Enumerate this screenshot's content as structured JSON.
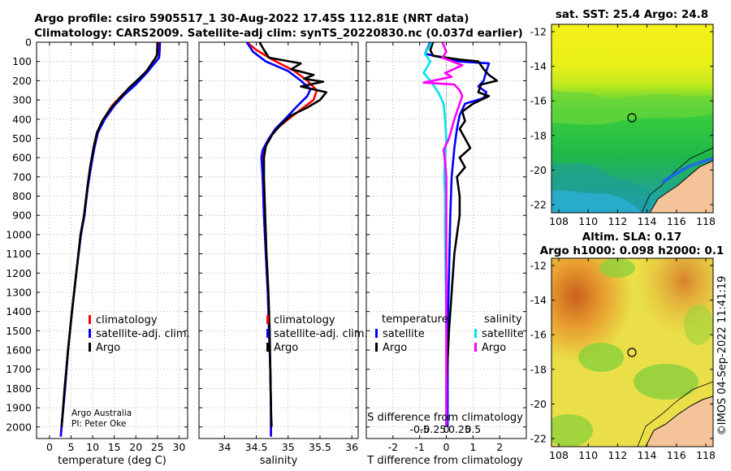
{
  "header": {
    "line1": "Argo profile: csiro 5905517_1 30-Aug-2022 17.45S 112.81E (NRT data)",
    "line2": "Climatology: CARS2009. Satellite-adj clim: synTS_20220830.nc (0.037d earlier)"
  },
  "credit": {
    "line1": "Argo Australia",
    "line2": "PI: Peter Oke"
  },
  "timestamp": "©IMOS 04-Sep-2022 11:41:19",
  "colors": {
    "climatology": "#ff0000",
    "satellite": "#0000ff",
    "argo": "#000000",
    "sal_satellite": "#00e5ee",
    "sal_argo": "#ff00ff"
  },
  "legends": {
    "temperature_panel": [
      "climatology",
      "satellite-adj. clim.",
      "Argo"
    ],
    "salinity_panel": [
      "climatology",
      "satellite-adj. clim.",
      "Argo"
    ],
    "diff_temp_title": "temperature",
    "diff_sal_title": "salinity",
    "diff_temp_items": [
      "satellite",
      "Argo"
    ],
    "diff_sal_items": [
      "satellite",
      "Argo"
    ]
  },
  "maps": {
    "sst_title": "sat. SST: 25.4 Argo: 24.8",
    "sla_title_1": "Altim. SLA: 0.17",
    "sla_title_2": "Argo h1000: 0.098 h2000: 0.1",
    "lon_ticks": [
      "108",
      "110",
      "112",
      "114",
      "116",
      "118"
    ],
    "lat_ticks": [
      "-12",
      "-14",
      "-16",
      "-18",
      "-20",
      "-22"
    ]
  },
  "chart_data": [
    {
      "type": "line",
      "id": "temperature",
      "xlabel": "temperature (deg C)",
      "ylabel": "",
      "xlim": [
        -3,
        32
      ],
      "ylim": [
        2060,
        0
      ],
      "xticks": [
        0,
        5,
        10,
        15,
        20,
        25,
        30
      ],
      "xtick_labels": [
        "0",
        "5",
        "10",
        "15",
        "20",
        "25",
        "30"
      ],
      "yticks": [
        0,
        100,
        200,
        300,
        400,
        500,
        600,
        700,
        800,
        900,
        1000,
        1100,
        1200,
        1300,
        1400,
        1500,
        1600,
        1700,
        1800,
        1900,
        2000
      ],
      "ytick_labels": [
        "0",
        "100",
        "200",
        "300",
        "400",
        "500",
        "600",
        "700",
        "800",
        "900",
        "1000",
        "1100",
        "1200",
        "1300",
        "1400",
        "1500",
        "1600",
        "1700",
        "1800",
        "1900",
        "2000"
      ],
      "series": [
        {
          "name": "climatology",
          "color": "#ff0000",
          "points": [
            [
              25.2,
              0
            ],
            [
              25.1,
              50
            ],
            [
              24.6,
              80
            ],
            [
              22.5,
              150
            ],
            [
              20,
              210
            ],
            [
              17,
              270
            ],
            [
              14.5,
              330
            ],
            [
              12.5,
              400
            ],
            [
              11,
              470
            ],
            [
              10.2,
              550
            ],
            [
              9.5,
              650
            ],
            [
              8.8,
              750
            ],
            [
              8,
              900
            ],
            [
              7.2,
              1000
            ],
            [
              6.2,
              1200
            ],
            [
              5.2,
              1400
            ],
            [
              4.3,
              1600
            ],
            [
              3.6,
              1800
            ],
            [
              2.8,
              2000
            ],
            [
              2.6,
              2050
            ]
          ]
        },
        {
          "name": "satellite-adj. clim.",
          "color": "#0000ff",
          "points": [
            [
              25.6,
              0
            ],
            [
              25.5,
              50
            ],
            [
              25.4,
              80
            ],
            [
              22.5,
              160
            ],
            [
              20,
              220
            ],
            [
              17.5,
              270
            ],
            [
              15,
              330
            ],
            [
              12.8,
              400
            ],
            [
              11.2,
              470
            ],
            [
              10.4,
              550
            ],
            [
              9.6,
              650
            ],
            [
              8.9,
              750
            ],
            [
              8.1,
              900
            ],
            [
              7.3,
              1000
            ],
            [
              6.2,
              1200
            ],
            [
              5.2,
              1400
            ],
            [
              4.3,
              1600
            ],
            [
              3.6,
              1800
            ],
            [
              2.8,
              2000
            ],
            [
              2.6,
              2050
            ]
          ]
        },
        {
          "name": "Argo",
          "color": "#000000",
          "points": [
            [
              25,
              0
            ],
            [
              24.9,
              70
            ],
            [
              24,
              100
            ],
            [
              22.5,
              150
            ],
            [
              20,
              205
            ],
            [
              18.5,
              235
            ],
            [
              17.5,
              260
            ],
            [
              15.5,
              310
            ],
            [
              14,
              350
            ],
            [
              12.2,
              410
            ],
            [
              11,
              470
            ],
            [
              10.2,
              550
            ],
            [
              9.4,
              650
            ],
            [
              8.8,
              750
            ],
            [
              8,
              900
            ],
            [
              7.2,
              1000
            ],
            [
              6.2,
              1200
            ],
            [
              5.2,
              1400
            ],
            [
              4.3,
              1600
            ],
            [
              3.5,
              1800
            ],
            [
              2.8,
              2000
            ]
          ]
        }
      ]
    },
    {
      "type": "line",
      "id": "salinity",
      "xlabel": "salinity",
      "ylabel": "",
      "xlim": [
        33.6,
        36.1
      ],
      "ylim": [
        2060,
        0
      ],
      "xticks": [
        34,
        34.5,
        35,
        35.5,
        36
      ],
      "xtick_labels": [
        "34",
        "34.5",
        "35",
        "35.5",
        "36"
      ],
      "series": [
        {
          "name": "climatology",
          "color": "#ff0000",
          "points": [
            [
              34.35,
              0
            ],
            [
              34.5,
              40
            ],
            [
              34.75,
              90
            ],
            [
              35.1,
              150
            ],
            [
              35.3,
              200
            ],
            [
              35.45,
              250
            ],
            [
              35.4,
              300
            ],
            [
              35.2,
              350
            ],
            [
              35.0,
              400
            ],
            [
              34.82,
              450
            ],
            [
              34.7,
              500
            ],
            [
              34.62,
              560
            ],
            [
              34.6,
              600
            ],
            [
              34.6,
              700
            ],
            [
              34.62,
              900
            ],
            [
              34.65,
              1100
            ],
            [
              34.68,
              1300
            ],
            [
              34.7,
              1500
            ],
            [
              34.72,
              1700
            ],
            [
              34.73,
              1900
            ],
            [
              34.73,
              2050
            ]
          ]
        },
        {
          "name": "satellite-adj. clim.",
          "color": "#0000ff",
          "points": [
            [
              34.35,
              0
            ],
            [
              34.45,
              50
            ],
            [
              34.65,
              100
            ],
            [
              35.0,
              150
            ],
            [
              35.2,
              200
            ],
            [
              35.35,
              245
            ],
            [
              35.3,
              280
            ],
            [
              35.12,
              340
            ],
            [
              34.95,
              400
            ],
            [
              34.8,
              450
            ],
            [
              34.68,
              510
            ],
            [
              34.6,
              560
            ],
            [
              34.58,
              600
            ],
            [
              34.6,
              700
            ],
            [
              34.62,
              900
            ],
            [
              34.65,
              1100
            ],
            [
              34.68,
              1300
            ],
            [
              34.7,
              1500
            ],
            [
              34.72,
              1700
            ],
            [
              34.73,
              1900
            ],
            [
              34.73,
              2050
            ]
          ]
        },
        {
          "name": "Argo",
          "color": "#000000",
          "points": [
            [
              34.55,
              0
            ],
            [
              34.62,
              40
            ],
            [
              34.7,
              80
            ],
            [
              35.2,
              110
            ],
            [
              35.05,
              140
            ],
            [
              35.4,
              170
            ],
            [
              35.25,
              190
            ],
            [
              35.55,
              205
            ],
            [
              35.2,
              230
            ],
            [
              35.6,
              260
            ],
            [
              35.5,
              300
            ],
            [
              35.3,
              340
            ],
            [
              35.05,
              380
            ],
            [
              34.88,
              430
            ],
            [
              34.75,
              480
            ],
            [
              34.65,
              540
            ],
            [
              34.62,
              600
            ],
            [
              34.62,
              700
            ],
            [
              34.64,
              900
            ],
            [
              34.66,
              1100
            ],
            [
              34.69,
              1300
            ],
            [
              34.71,
              1500
            ],
            [
              34.72,
              1700
            ],
            [
              34.73,
              1900
            ],
            [
              34.74,
              2000
            ]
          ]
        }
      ]
    },
    {
      "type": "line",
      "id": "difference",
      "xlabel": "T difference from climatology",
      "xlabel2": "S difference from climatology",
      "xlim": [
        -3,
        3
      ],
      "ylim": [
        2060,
        0
      ],
      "xticks": [
        -2,
        -1,
        0,
        1,
        2
      ],
      "xtick_labels": [
        "-2",
        "-1",
        "0",
        "1",
        "2"
      ],
      "s_xticks": [
        -1,
        -0.5,
        0,
        0.5,
        1
      ],
      "s_xtick_labels": [
        "-0.5",
        "-0.25",
        "0",
        "0.25",
        "0.5"
      ],
      "series": [
        {
          "name": "temperature satellite",
          "color": "#0000ff",
          "points": [
            [
              -0.6,
              0
            ],
            [
              -0.8,
              60
            ],
            [
              0.5,
              100
            ],
            [
              1.6,
              110
            ],
            [
              1.5,
              150
            ],
            [
              1.4,
              200
            ],
            [
              1.2,
              230
            ],
            [
              1.5,
              260
            ],
            [
              1.4,
              290
            ],
            [
              0.7,
              320
            ],
            [
              0.5,
              380
            ],
            [
              0.4,
              450
            ],
            [
              0.3,
              550
            ],
            [
              0.2,
              700
            ],
            [
              0.15,
              900
            ],
            [
              0.1,
              1200
            ],
            [
              0.05,
              1500
            ],
            [
              0.05,
              1800
            ],
            [
              0.05,
              2000
            ]
          ]
        },
        {
          "name": "temperature Argo",
          "color": "#000000",
          "points": [
            [
              -0.5,
              0
            ],
            [
              -0.6,
              40
            ],
            [
              -0.5,
              70
            ],
            [
              0.5,
              90
            ],
            [
              1.2,
              100
            ],
            [
              1.4,
              140
            ],
            [
              1.6,
              170
            ],
            [
              1.9,
              200
            ],
            [
              1.3,
              220
            ],
            [
              1.2,
              260
            ],
            [
              1.6,
              280
            ],
            [
              1.0,
              320
            ],
            [
              0.6,
              360
            ],
            [
              0.7,
              410
            ],
            [
              0.5,
              450
            ],
            [
              0.7,
              500
            ],
            [
              0.9,
              550
            ],
            [
              0.5,
              600
            ],
            [
              0.7,
              650
            ],
            [
              0.4,
              700
            ],
            [
              0.5,
              800
            ],
            [
              0.5,
              900
            ],
            [
              0.4,
              1000
            ],
            [
              0.3,
              1100
            ],
            [
              0.2,
              1300
            ],
            [
              0.1,
              1500
            ],
            [
              0.0,
              1800
            ],
            [
              0.0,
              2000
            ]
          ]
        },
        {
          "name": "salinity satellite",
          "color": "#00e5ee",
          "points": [
            [
              -0.55,
              0
            ],
            [
              -0.8,
              60
            ],
            [
              -0.6,
              100
            ],
            [
              -0.85,
              160
            ],
            [
              -0.6,
              200
            ],
            [
              -0.3,
              260
            ],
            [
              -0.1,
              320
            ],
            [
              -0.05,
              400
            ],
            [
              0.0,
              500
            ],
            [
              -0.05,
              600
            ],
            [
              -0.08,
              700
            ],
            [
              -0.05,
              800
            ],
            [
              -0.05,
              1000
            ],
            [
              0.0,
              1500
            ],
            [
              0.0,
              2000
            ]
          ]
        },
        {
          "name": "salinity Argo",
          "color": "#ff00ff",
          "points": [
            [
              -0.15,
              0
            ],
            [
              0.0,
              50
            ],
            [
              -0.15,
              80
            ],
            [
              0.6,
              120
            ],
            [
              -0.05,
              160
            ],
            [
              0.2,
              180
            ],
            [
              -0.85,
              210
            ],
            [
              0.3,
              220
            ],
            [
              0.5,
              250
            ],
            [
              0.6,
              280
            ],
            [
              0.5,
              320
            ],
            [
              0.4,
              360
            ],
            [
              0.3,
              400
            ],
            [
              0.2,
              450
            ],
            [
              0.1,
              500
            ],
            [
              -0.1,
              560
            ],
            [
              -0.05,
              620
            ],
            [
              0.0,
              700
            ],
            [
              0.0,
              900
            ],
            [
              0.0,
              1200
            ],
            [
              0.0,
              1500
            ],
            [
              0.0,
              2000
            ]
          ]
        }
      ]
    }
  ]
}
